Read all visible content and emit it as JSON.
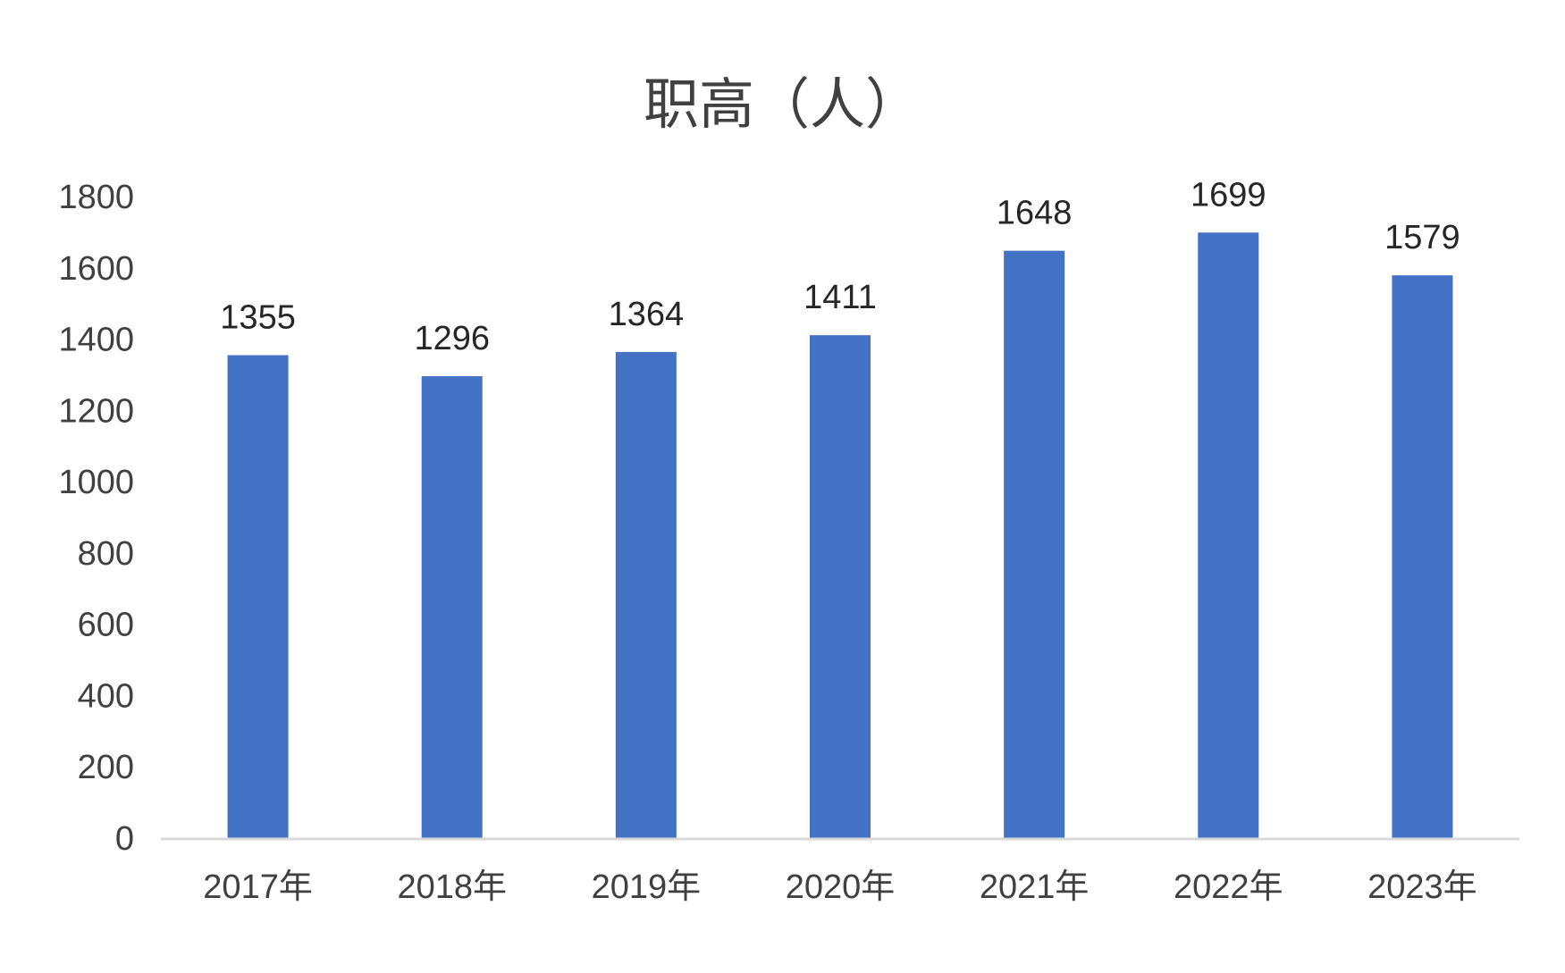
{
  "chart_data": {
    "type": "bar",
    "title": "职高（人）",
    "categories": [
      "2017年",
      "2018年",
      "2019年",
      "2020年",
      "2021年",
      "2022年",
      "2023年"
    ],
    "series": [
      {
        "values": [
          1355,
          1296,
          1364,
          1411,
          1648,
          1699,
          1579
        ]
      }
    ],
    "ylim": [
      0,
      1800
    ],
    "yticks": [
      "0",
      "200",
      "400",
      "600",
      "800",
      "1000",
      "1200",
      "1400",
      "1600",
      "1800"
    ],
    "bar_color": "#4472C4",
    "axis_color": "#D9D9D9",
    "grid": false,
    "legend": "none",
    "data_labels": true
  }
}
